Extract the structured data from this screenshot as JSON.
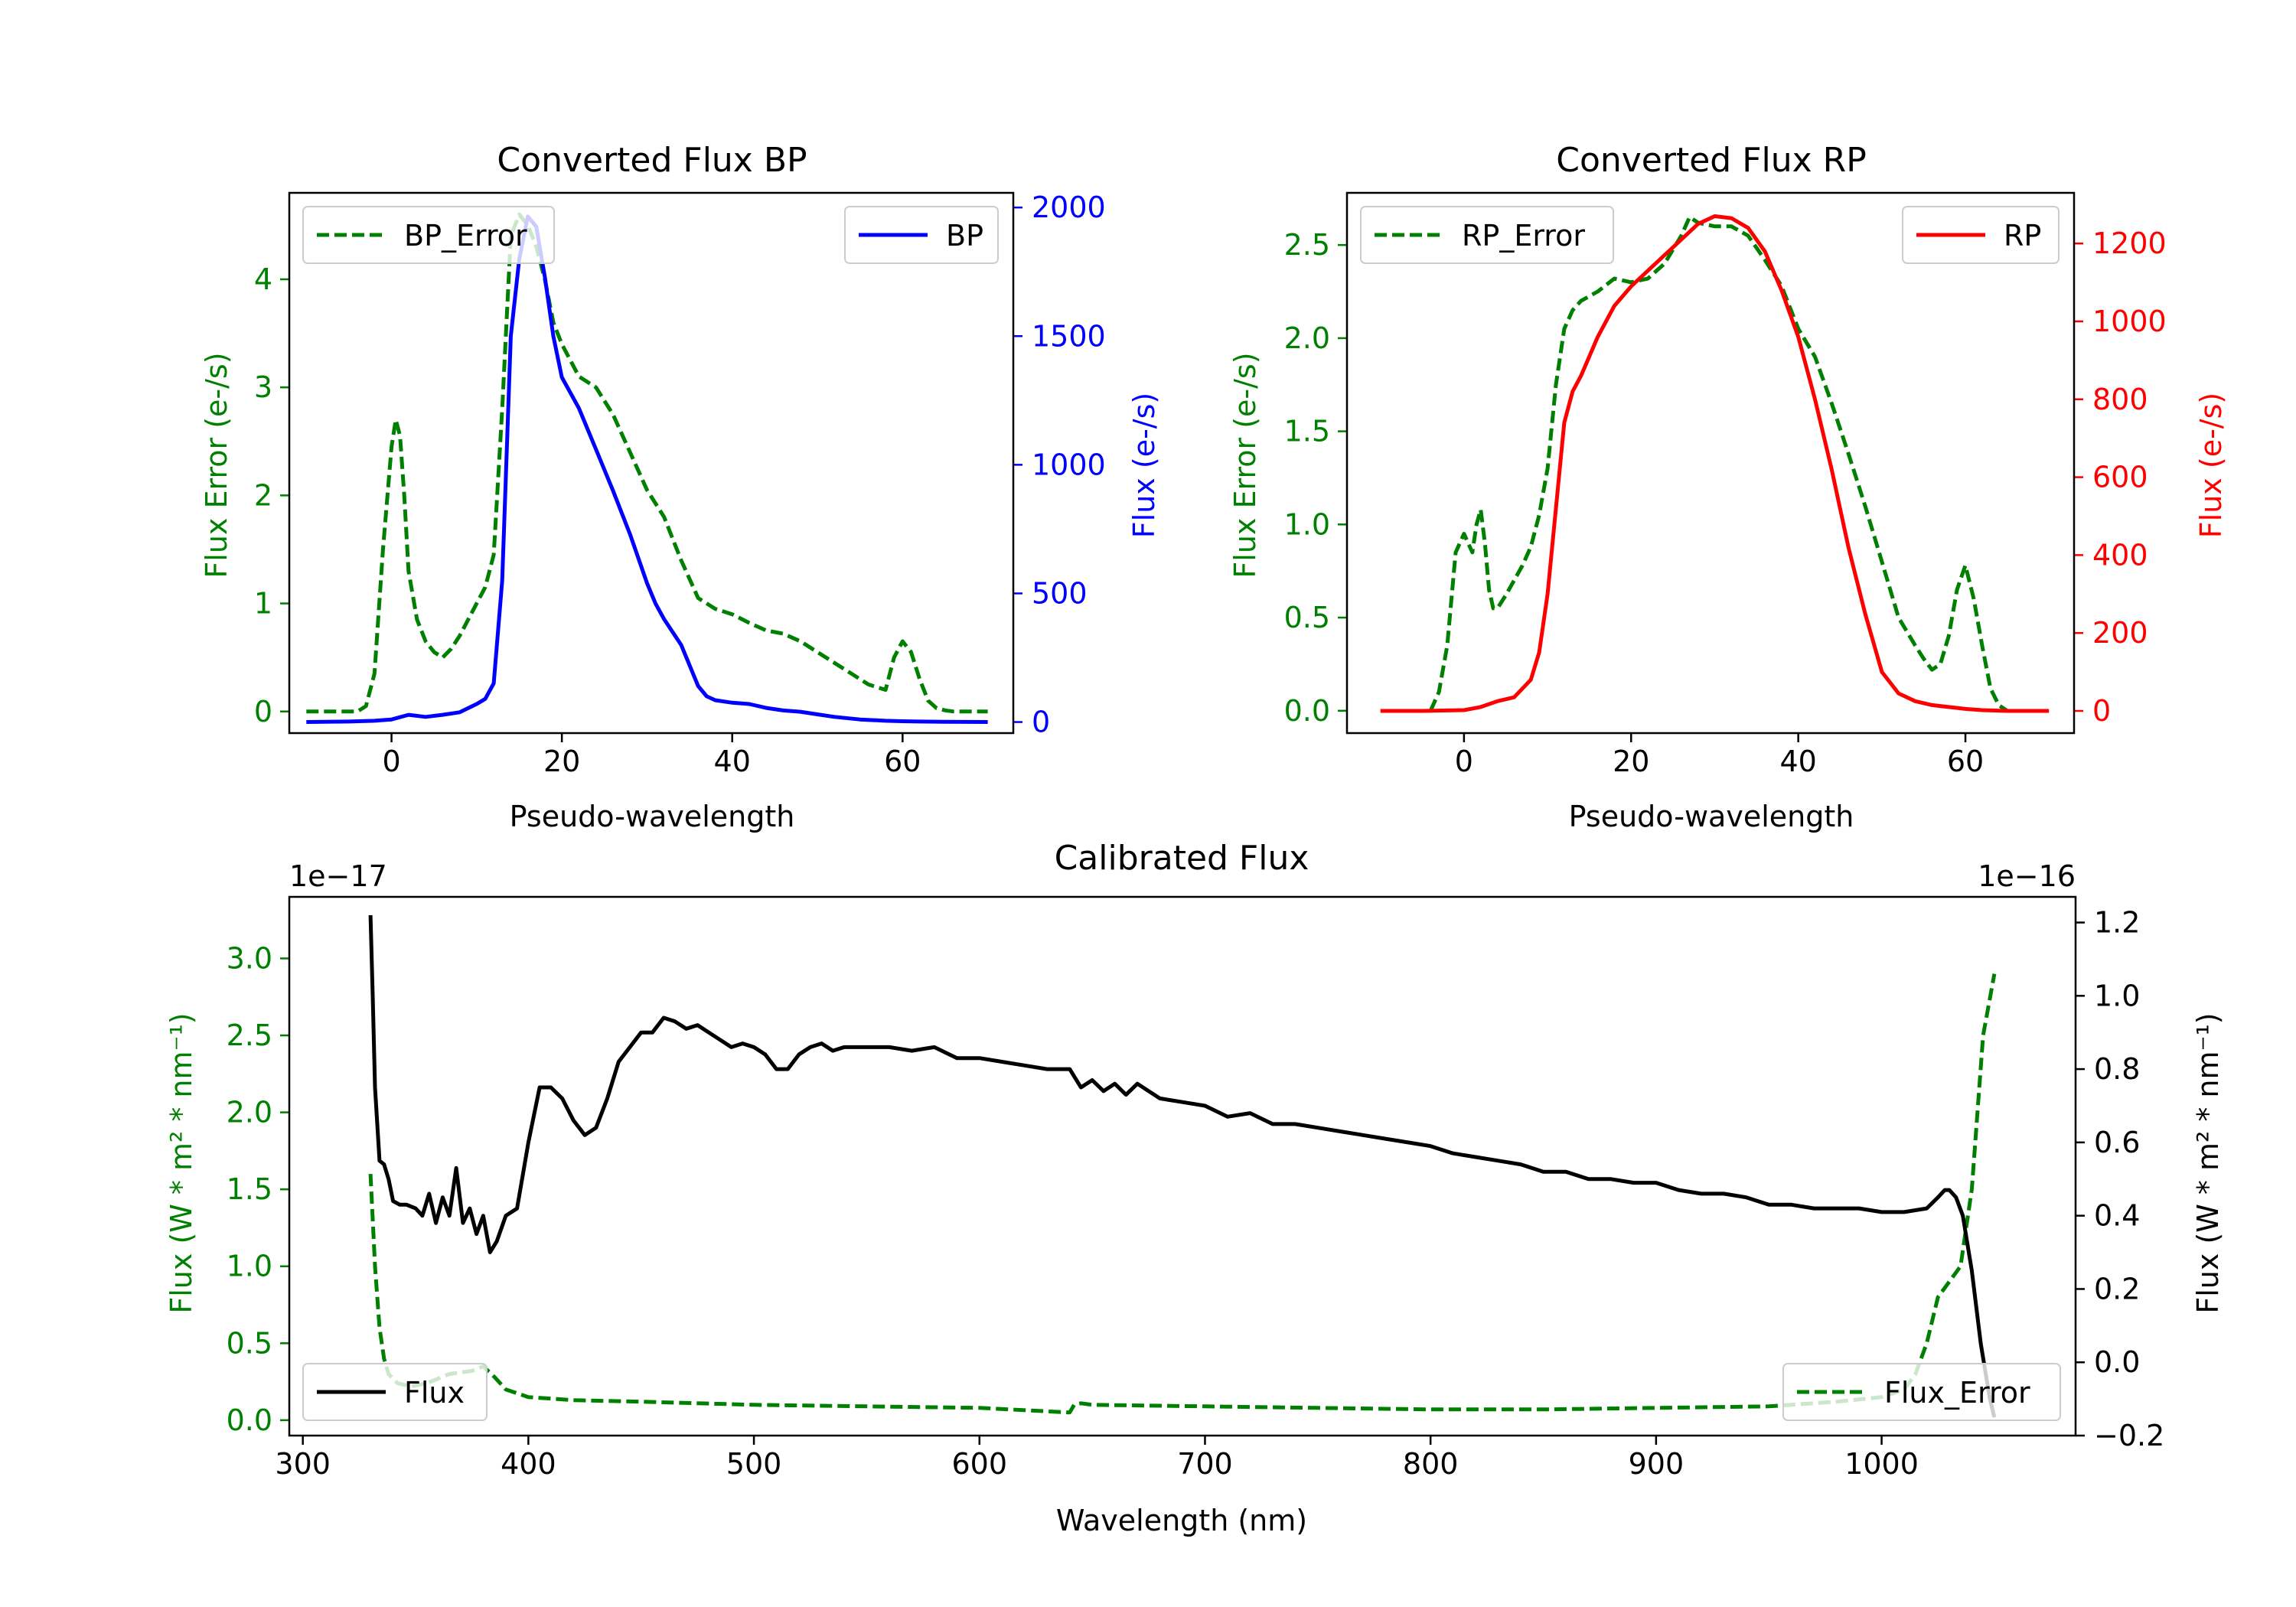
{
  "chart_data": [
    {
      "id": "bp",
      "type": "line",
      "title": "Converted Flux BP",
      "xlabel": "Pseudo-wavelength",
      "ylabel_left": "Flux Error (e-/s)",
      "ylabel_right": "Flux (e-/s)",
      "xlim": [
        -12,
        73
      ],
      "ylim_left": [
        -0.2,
        4.8
      ],
      "ylim_right": [
        -43,
        2057
      ],
      "xticks": [
        0,
        20,
        40,
        60
      ],
      "yticks_left": [
        0,
        1,
        2,
        3,
        4
      ],
      "yticks_right": [
        0,
        500,
        1000,
        1500,
        2000
      ],
      "legend_left": {
        "label": "BP_Error",
        "placement": "upper left"
      },
      "legend_right": {
        "label": "BP",
        "placement": "upper right"
      },
      "series": [
        {
          "name": "BP_Error",
          "axis": "left",
          "color": "#008000",
          "dash": "dashed",
          "x": [
            -10,
            -4,
            -3,
            -2,
            -1,
            0,
            0.5,
            1,
            1.5,
            2,
            3,
            4,
            5,
            6,
            7,
            8,
            9,
            10,
            11,
            12,
            13,
            14,
            15,
            16,
            17,
            18,
            19,
            20,
            22,
            24,
            26,
            28,
            30,
            32,
            34,
            36,
            38,
            40,
            42,
            44,
            46,
            48,
            50,
            52,
            54,
            56,
            58,
            59,
            60,
            61,
            62,
            63,
            64,
            65,
            66,
            68,
            70
          ],
          "y": [
            0,
            0,
            0.05,
            0.35,
            1.5,
            2.45,
            2.7,
            2.55,
            2.0,
            1.3,
            0.85,
            0.65,
            0.55,
            0.5,
            0.58,
            0.7,
            0.85,
            1.0,
            1.15,
            1.45,
            2.8,
            4.4,
            4.6,
            4.5,
            4.3,
            4.0,
            3.6,
            3.4,
            3.1,
            3.0,
            2.75,
            2.4,
            2.05,
            1.8,
            1.4,
            1.05,
            0.95,
            0.9,
            0.82,
            0.75,
            0.72,
            0.65,
            0.55,
            0.45,
            0.35,
            0.25,
            0.2,
            0.5,
            0.65,
            0.55,
            0.3,
            0.1,
            0.03,
            0.01,
            0,
            0,
            0
          ]
        },
        {
          "name": "BP",
          "axis": "right",
          "color": "#0000ff",
          "dash": "solid",
          "x": [
            -10,
            -5,
            -2,
            0,
            2,
            4,
            6,
            8,
            10,
            11,
            12,
            13,
            14,
            15,
            16,
            17,
            18,
            19,
            20,
            22,
            24,
            26,
            28,
            30,
            31,
            32,
            33,
            34,
            35,
            36,
            37,
            38,
            40,
            42,
            44,
            46,
            48,
            50,
            52,
            55,
            58,
            60,
            62,
            65,
            70
          ],
          "y": [
            0,
            2,
            5,
            10,
            28,
            20,
            28,
            38,
            70,
            90,
            150,
            550,
            1500,
            1800,
            1965,
            1925,
            1730,
            1500,
            1340,
            1220,
            1060,
            900,
            730,
            540,
            460,
            400,
            350,
            300,
            220,
            140,
            100,
            85,
            75,
            70,
            55,
            45,
            40,
            30,
            20,
            10,
            5,
            3,
            2,
            1,
            0
          ]
        }
      ]
    },
    {
      "id": "rp",
      "type": "line",
      "title": "Converted Flux RP",
      "xlabel": "Pseudo-wavelength",
      "ylabel_left": "Flux Error (e-/s)",
      "ylabel_right": "Flux (e-/s)",
      "xlim": [
        -14,
        73
      ],
      "ylim_left": [
        -0.12,
        2.78
      ],
      "ylim_right": [
        -57,
        1330
      ],
      "xticks": [
        0,
        20,
        40,
        60
      ],
      "yticks_left": [
        0.0,
        0.5,
        1.0,
        1.5,
        2.0,
        2.5
      ],
      "yticks_right": [
        0,
        200,
        400,
        600,
        800,
        1000,
        1200
      ],
      "legend_left": {
        "label": "RP_Error",
        "placement": "upper left"
      },
      "legend_right": {
        "label": "RP",
        "placement": "upper right"
      },
      "series": [
        {
          "name": "RP_Error",
          "axis": "left",
          "color": "#008000",
          "dash": "dashed",
          "x": [
            -4,
            -3,
            -2,
            -1,
            0,
            0.5,
            1,
            1.5,
            2,
            2.5,
            3,
            3.5,
            4,
            5,
            6,
            7,
            8,
            9,
            10,
            11,
            12,
            13,
            14,
            16,
            18,
            20,
            22,
            24,
            26,
            27,
            28,
            30,
            32,
            34,
            36,
            38,
            40,
            42,
            44,
            46,
            48,
            50,
            52,
            54,
            55,
            56,
            57,
            58,
            59,
            60,
            61,
            62,
            63,
            64,
            65
          ],
          "y": [
            0,
            0.1,
            0.35,
            0.85,
            0.95,
            0.9,
            0.85,
            1.0,
            1.08,
            0.9,
            0.65,
            0.55,
            0.55,
            0.62,
            0.7,
            0.78,
            0.88,
            1.05,
            1.3,
            1.75,
            2.05,
            2.15,
            2.2,
            2.25,
            2.32,
            2.3,
            2.32,
            2.4,
            2.55,
            2.65,
            2.62,
            2.6,
            2.6,
            2.55,
            2.42,
            2.28,
            2.05,
            1.9,
            1.65,
            1.38,
            1.1,
            0.8,
            0.5,
            0.35,
            0.28,
            0.22,
            0.25,
            0.4,
            0.65,
            0.78,
            0.6,
            0.35,
            0.12,
            0.03,
            0
          ]
        },
        {
          "name": "RP",
          "axis": "right",
          "color": "#ff0000",
          "dash": "solid",
          "x": [
            -10,
            -5,
            0,
            2,
            4,
            6,
            8,
            9,
            10,
            11,
            12,
            13,
            14,
            16,
            18,
            20,
            22,
            24,
            26,
            28,
            30,
            32,
            34,
            36,
            38,
            40,
            42,
            44,
            46,
            48,
            50,
            52,
            54,
            56,
            58,
            60,
            62,
            65,
            70
          ],
          "y": [
            0,
            0,
            2,
            10,
            25,
            35,
            80,
            150,
            300,
            520,
            740,
            820,
            860,
            960,
            1040,
            1090,
            1130,
            1170,
            1210,
            1250,
            1270,
            1265,
            1240,
            1180,
            1080,
            960,
            800,
            620,
            420,
            250,
            100,
            45,
            25,
            15,
            10,
            5,
            2,
            0,
            0
          ]
        }
      ]
    },
    {
      "id": "calibrated",
      "type": "line",
      "title": "Calibrated Flux",
      "xlabel": "Wavelength (nm)",
      "ylabel_left": "Flux (W * m² * nm⁻¹)",
      "ylabel_right": "Flux (W * m² * nm⁻¹)",
      "offset_left": "1e−17",
      "offset_right": "1e−16",
      "xlim": [
        294,
        1086
      ],
      "ylim_left": [
        -0.1,
        3.4
      ],
      "ylim_right": [
        -0.2,
        1.27
      ],
      "xticks": [
        300,
        400,
        500,
        600,
        700,
        800,
        900,
        1000
      ],
      "yticks_left": [
        0.0,
        0.5,
        1.0,
        1.5,
        2.0,
        2.5,
        3.0
      ],
      "yticks_right": [
        -0.2,
        0.0,
        0.2,
        0.4,
        0.6,
        0.8,
        1.0,
        1.2
      ],
      "ytick_labels_left": [
        "0.0",
        "0.5",
        "1.0",
        "1.5",
        "2.0",
        "2.5",
        "3.0"
      ],
      "ytick_labels_right": [
        "−0.2",
        "0.0",
        "0.2",
        "0.4",
        "0.6",
        "0.8",
        "1.0",
        "1.2"
      ],
      "legend_left": {
        "label": "Flux",
        "placement": "lower left"
      },
      "legend_right": {
        "label": "Flux_Error",
        "placement": "lower right"
      },
      "series": [
        {
          "name": "Flux_Error",
          "axis": "left",
          "color": "#008000",
          "dash": "dashed",
          "x": [
            330,
            332,
            334,
            336,
            338,
            342,
            348,
            355,
            365,
            375,
            380,
            385,
            390,
            400,
            420,
            450,
            500,
            550,
            600,
            640,
            642,
            645,
            650,
            700,
            750,
            800,
            850,
            900,
            950,
            980,
            1000,
            1010,
            1015,
            1020,
            1025,
            1030,
            1035,
            1040,
            1045,
            1050
          ],
          "y": [
            1.6,
            1.0,
            0.6,
            0.4,
            0.3,
            0.24,
            0.22,
            0.24,
            0.3,
            0.32,
            0.35,
            0.28,
            0.2,
            0.15,
            0.13,
            0.12,
            0.1,
            0.09,
            0.08,
            0.05,
            0.1,
            0.11,
            0.1,
            0.09,
            0.08,
            0.07,
            0.07,
            0.08,
            0.09,
            0.12,
            0.15,
            0.2,
            0.3,
            0.5,
            0.8,
            0.9,
            1.0,
            1.5,
            2.5,
            2.9
          ]
        },
        {
          "name": "Flux",
          "axis": "right",
          "color": "#000000",
          "dash": "solid",
          "x": [
            330,
            331,
            332,
            334,
            336,
            338,
            340,
            343,
            346,
            350,
            353,
            356,
            359,
            362,
            365,
            368,
            371,
            374,
            377,
            380,
            383,
            386,
            390,
            395,
            400,
            405,
            410,
            415,
            420,
            425,
            430,
            435,
            440,
            445,
            450,
            455,
            460,
            465,
            470,
            475,
            480,
            485,
            490,
            495,
            500,
            505,
            510,
            515,
            520,
            525,
            530,
            535,
            540,
            550,
            560,
            570,
            580,
            590,
            600,
            610,
            620,
            630,
            640,
            645,
            650,
            655,
            660,
            665,
            670,
            675,
            680,
            690,
            700,
            710,
            720,
            730,
            740,
            750,
            760,
            770,
            780,
            790,
            800,
            810,
            820,
            830,
            840,
            850,
            860,
            870,
            880,
            890,
            900,
            910,
            920,
            930,
            940,
            950,
            960,
            970,
            980,
            990,
            1000,
            1010,
            1020,
            1025,
            1028,
            1030,
            1033,
            1036,
            1040,
            1044,
            1048,
            1050
          ],
          "y": [
            1.22,
            1.0,
            0.75,
            0.55,
            0.54,
            0.5,
            0.44,
            0.43,
            0.43,
            0.42,
            0.4,
            0.46,
            0.38,
            0.45,
            0.4,
            0.53,
            0.38,
            0.42,
            0.35,
            0.4,
            0.3,
            0.33,
            0.4,
            0.42,
            0.6,
            0.75,
            0.75,
            0.72,
            0.66,
            0.62,
            0.64,
            0.72,
            0.82,
            0.86,
            0.9,
            0.9,
            0.94,
            0.93,
            0.91,
            0.92,
            0.9,
            0.88,
            0.86,
            0.87,
            0.86,
            0.84,
            0.8,
            0.8,
            0.84,
            0.86,
            0.87,
            0.85,
            0.86,
            0.86,
            0.86,
            0.85,
            0.86,
            0.83,
            0.83,
            0.82,
            0.81,
            0.8,
            0.8,
            0.75,
            0.77,
            0.74,
            0.76,
            0.73,
            0.76,
            0.74,
            0.72,
            0.71,
            0.7,
            0.67,
            0.68,
            0.65,
            0.65,
            0.64,
            0.63,
            0.62,
            0.61,
            0.6,
            0.59,
            0.57,
            0.56,
            0.55,
            0.54,
            0.52,
            0.52,
            0.5,
            0.5,
            0.49,
            0.49,
            0.47,
            0.46,
            0.46,
            0.45,
            0.43,
            0.43,
            0.42,
            0.42,
            0.42,
            0.41,
            0.41,
            0.42,
            0.45,
            0.47,
            0.47,
            0.45,
            0.4,
            0.25,
            0.05,
            -0.1,
            -0.15
          ]
        }
      ]
    }
  ]
}
